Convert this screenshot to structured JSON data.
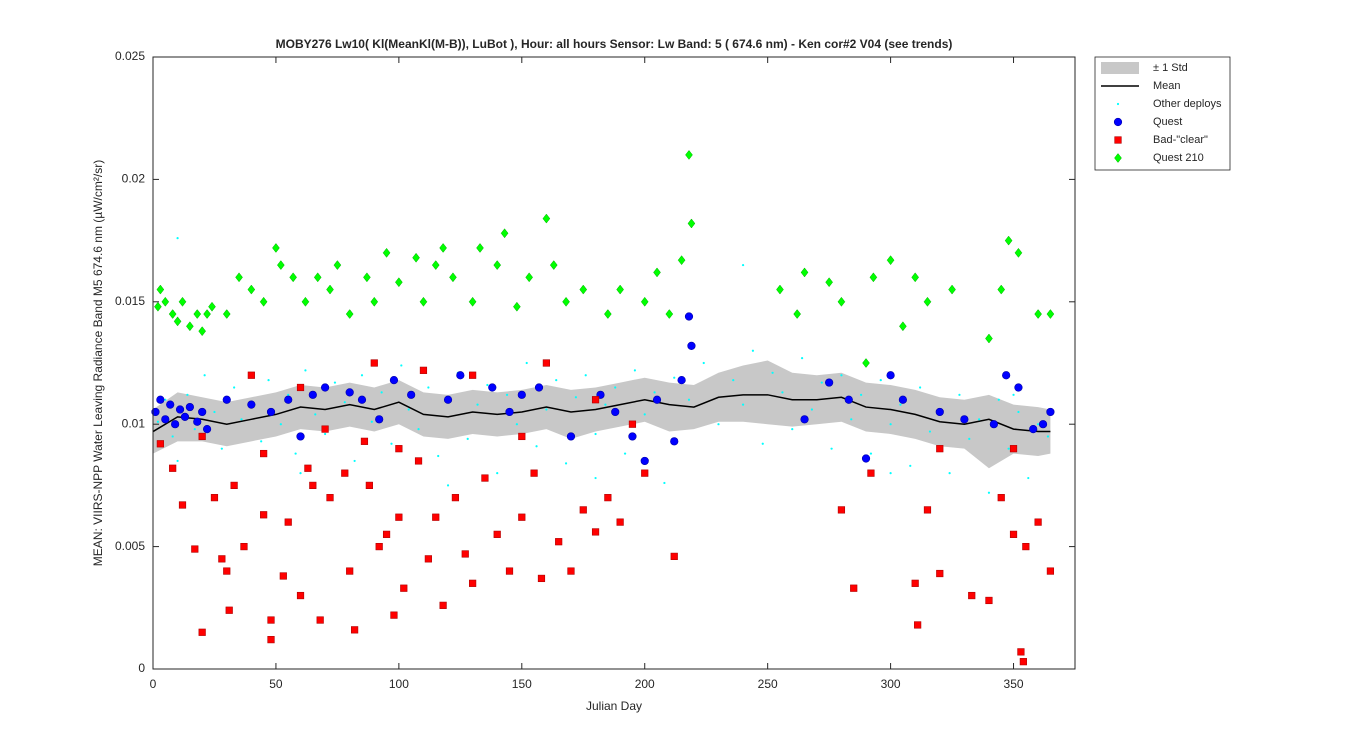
{
  "chart_data": {
    "type": "scatter",
    "title": "MOBY276   Lw10( Kl(MeanKl(M-B)), LuBot ),   Hour: all hours  Sensor: Lw Band: 5 ( 674.6 nm)  - Ken cor#2 V04 (see trends)",
    "xlabel": "Julian Day",
    "ylabel": "MEAN: VIIRS-NPP Water Leaving Radiance Band M5 674.6 nm (µW/cm²/sr)",
    "xlim": [
      0,
      375
    ],
    "ylim": [
      0,
      0.025
    ],
    "xticks": [
      0,
      50,
      100,
      150,
      200,
      250,
      300,
      350
    ],
    "yticks": [
      0,
      0.005,
      0.01,
      0.015,
      0.02,
      0.025
    ],
    "grid": false,
    "legend": "outside-top-right",
    "series": [
      {
        "name": "± 1 Std",
        "kind": "band",
        "color": "#c8c8c8",
        "x": [
          0,
          10,
          20,
          30,
          40,
          50,
          60,
          70,
          80,
          90,
          100,
          110,
          120,
          130,
          140,
          150,
          160,
          170,
          180,
          190,
          200,
          210,
          220,
          230,
          240,
          250,
          260,
          270,
          280,
          290,
          300,
          310,
          320,
          330,
          340,
          350,
          360,
          365
        ],
        "upper": [
          0.0106,
          0.0113,
          0.0111,
          0.0109,
          0.0111,
          0.0113,
          0.0116,
          0.0115,
          0.0117,
          0.0115,
          0.0118,
          0.0113,
          0.0112,
          0.0114,
          0.0113,
          0.0114,
          0.0116,
          0.0114,
          0.0115,
          0.0117,
          0.0119,
          0.0117,
          0.0116,
          0.0121,
          0.0124,
          0.0126,
          0.0121,
          0.012,
          0.0121,
          0.0117,
          0.0116,
          0.0114,
          0.0111,
          0.011,
          0.0112,
          0.0108,
          0.0107,
          0.0106
        ],
        "lower": [
          0.0088,
          0.0093,
          0.0093,
          0.0091,
          0.0093,
          0.0095,
          0.0098,
          0.0097,
          0.0099,
          0.0097,
          0.01,
          0.0095,
          0.0094,
          0.0096,
          0.0095,
          0.0096,
          0.0098,
          0.0094,
          0.0097,
          0.0099,
          0.0101,
          0.0097,
          0.0098,
          0.0101,
          0.0101,
          0.01,
          0.0099,
          0.01,
          0.0101,
          0.0097,
          0.0096,
          0.0094,
          0.0091,
          0.009,
          0.0082,
          0.0088,
          0.0087,
          0.0088
        ]
      },
      {
        "name": "Mean",
        "kind": "line",
        "color": "#000000",
        "x": [
          0,
          10,
          20,
          30,
          40,
          50,
          60,
          70,
          80,
          90,
          100,
          110,
          120,
          130,
          140,
          150,
          160,
          170,
          180,
          190,
          200,
          210,
          220,
          230,
          240,
          250,
          260,
          270,
          280,
          290,
          300,
          310,
          320,
          330,
          340,
          350,
          360,
          365
        ],
        "values": [
          0.0097,
          0.0103,
          0.0102,
          0.01,
          0.0102,
          0.0104,
          0.0107,
          0.0106,
          0.0108,
          0.0106,
          0.0109,
          0.0104,
          0.0103,
          0.0105,
          0.0104,
          0.0105,
          0.0107,
          0.0105,
          0.0106,
          0.0108,
          0.011,
          0.0108,
          0.0107,
          0.0111,
          0.0112,
          0.0112,
          0.011,
          0.011,
          0.0111,
          0.0107,
          0.0106,
          0.0104,
          0.0101,
          0.01,
          0.0102,
          0.0098,
          0.0097,
          0.0097
        ]
      },
      {
        "name": "Other deploys",
        "kind": "dot",
        "color": "#00ffff",
        "x": [
          2,
          5,
          8,
          10,
          14,
          17,
          21,
          25,
          28,
          33,
          36,
          40,
          44,
          47,
          52,
          55,
          58,
          62,
          66,
          70,
          74,
          78,
          82,
          85,
          89,
          93,
          97,
          101,
          104,
          108,
          112,
          116,
          120,
          124,
          128,
          132,
          136,
          140,
          144,
          148,
          152,
          156,
          160,
          164,
          168,
          172,
          176,
          180,
          184,
          188,
          192,
          196,
          200,
          204,
          208,
          212,
          218,
          224,
          230,
          236,
          240,
          244,
          248,
          252,
          256,
          260,
          264,
          268,
          272,
          276,
          280,
          284,
          288,
          292,
          296,
          300,
          304,
          308,
          312,
          316,
          320,
          324,
          328,
          332,
          336,
          340,
          344,
          348,
          352,
          356,
          360,
          364,
          10,
          60,
          120,
          180,
          240,
          300,
          350
        ],
        "values": [
          0.0101,
          0.011,
          0.0095,
          0.0176,
          0.0112,
          0.0098,
          0.012,
          0.0105,
          0.009,
          0.0115,
          0.0102,
          0.0108,
          0.0093,
          0.0118,
          0.01,
          0.0112,
          0.0088,
          0.0122,
          0.0104,
          0.0096,
          0.0117,
          0.0109,
          0.0085,
          0.012,
          0.0101,
          0.0113,
          0.0092,
          0.0124,
          0.0106,
          0.0098,
          0.0115,
          0.0087,
          0.011,
          0.0121,
          0.0094,
          0.0108,
          0.0116,
          0.008,
          0.0112,
          0.01,
          0.0125,
          0.0091,
          0.0106,
          0.0118,
          0.0084,
          0.0111,
          0.012,
          0.0096,
          0.0108,
          0.0115,
          0.0088,
          0.0122,
          0.0104,
          0.0113,
          0.0076,
          0.0119,
          0.011,
          0.0125,
          0.01,
          0.0118,
          0.0108,
          0.013,
          0.0092,
          0.0121,
          0.0113,
          0.0098,
          0.0127,
          0.0106,
          0.0117,
          0.009,
          0.012,
          0.0102,
          0.0112,
          0.0088,
          0.0118,
          0.01,
          0.0108,
          0.0083,
          0.0115,
          0.0097,
          0.0105,
          0.008,
          0.0112,
          0.0094,
          0.0102,
          0.0072,
          0.011,
          0.009,
          0.0105,
          0.0078,
          0.01,
          0.0095,
          0.0085,
          0.008,
          0.0075,
          0.0078,
          0.0165,
          0.008,
          0.0112
        ]
      },
      {
        "name": "Quest",
        "kind": "circle",
        "color": "#0000ff",
        "x": [
          1,
          3,
          5,
          7,
          9,
          11,
          13,
          15,
          18,
          20,
          22,
          30,
          40,
          48,
          55,
          60,
          65,
          70,
          80,
          85,
          92,
          98,
          105,
          120,
          125,
          138,
          145,
          150,
          157,
          170,
          182,
          188,
          195,
          200,
          205,
          212,
          215,
          218,
          219,
          265,
          275,
          283,
          290,
          300,
          305,
          320,
          330,
          342,
          347,
          352,
          358,
          362,
          365
        ],
        "values": [
          0.0105,
          0.011,
          0.0102,
          0.0108,
          0.01,
          0.0106,
          0.0103,
          0.0107,
          0.0101,
          0.0105,
          0.0098,
          0.011,
          0.0108,
          0.0105,
          0.011,
          0.0095,
          0.0112,
          0.0115,
          0.0113,
          0.011,
          0.0102,
          0.0118,
          0.0112,
          0.011,
          0.012,
          0.0115,
          0.0105,
          0.0112,
          0.0115,
          0.0095,
          0.0112,
          0.0105,
          0.0095,
          0.0085,
          0.011,
          0.0093,
          0.0118,
          0.0144,
          0.0132,
          0.0102,
          0.0117,
          0.011,
          0.0086,
          0.012,
          0.011,
          0.0105,
          0.0102,
          0.01,
          0.012,
          0.0115,
          0.0098,
          0.01,
          0.0105
        ]
      },
      {
        "name": "Bad-\"clear\"",
        "kind": "square",
        "color": "#ff0000",
        "x": [
          3,
          8,
          12,
          17,
          20,
          25,
          28,
          30,
          31,
          33,
          37,
          45,
          48,
          48,
          53,
          55,
          60,
          63,
          65,
          68,
          72,
          78,
          80,
          82,
          88,
          92,
          95,
          98,
          100,
          102,
          108,
          112,
          115,
          118,
          123,
          127,
          130,
          135,
          140,
          145,
          150,
          155,
          158,
          165,
          170,
          175,
          180,
          185,
          190,
          200,
          212,
          40,
          60,
          90,
          110,
          130,
          160,
          180,
          280,
          285,
          292,
          310,
          311,
          315,
          320,
          333,
          340,
          345,
          350,
          353,
          354,
          355,
          360,
          365,
          20,
          45,
          70,
          100,
          150,
          195,
          320,
          350,
          86
        ],
        "values": [
          0.0092,
          0.0082,
          0.0067,
          0.0049,
          0.0015,
          0.007,
          0.0045,
          0.004,
          0.0024,
          0.0075,
          0.005,
          0.0063,
          0.002,
          0.0012,
          0.0038,
          0.006,
          0.003,
          0.0082,
          0.0075,
          0.002,
          0.007,
          0.008,
          0.004,
          0.0016,
          0.0075,
          0.005,
          0.0055,
          0.0022,
          0.0062,
          0.0033,
          0.0085,
          0.0045,
          0.0062,
          0.0026,
          0.007,
          0.0047,
          0.0035,
          0.0078,
          0.0055,
          0.004,
          0.0062,
          0.008,
          0.0037,
          0.0052,
          0.004,
          0.0065,
          0.0056,
          0.007,
          0.006,
          0.008,
          0.0046,
          0.012,
          0.0115,
          0.0125,
          0.0122,
          0.012,
          0.0125,
          0.011,
          0.0065,
          0.0033,
          0.008,
          0.0035,
          0.0018,
          0.0065,
          0.0039,
          0.003,
          0.0028,
          0.007,
          0.0055,
          0.0007,
          0.0003,
          0.005,
          0.006,
          0.004,
          0.0095,
          0.0088,
          0.0098,
          0.009,
          0.0095,
          0.01,
          0.009,
          0.009,
          0.0093
        ]
      },
      {
        "name": "Quest 210",
        "kind": "diamond",
        "color": "#00ff00",
        "x": [
          2,
          3,
          5,
          8,
          10,
          12,
          15,
          18,
          20,
          22,
          24,
          30,
          35,
          40,
          45,
          50,
          52,
          57,
          62,
          67,
          72,
          75,
          80,
          87,
          90,
          95,
          100,
          107,
          110,
          115,
          118,
          122,
          130,
          133,
          140,
          143,
          148,
          153,
          160,
          163,
          168,
          175,
          185,
          190,
          200,
          205,
          210,
          215,
          218,
          219,
          255,
          262,
          265,
          275,
          280,
          293,
          300,
          305,
          310,
          315,
          325,
          340,
          345,
          348,
          352,
          360,
          365,
          290
        ],
        "values": [
          0.0148,
          0.0155,
          0.015,
          0.0145,
          0.0142,
          0.015,
          0.014,
          0.0145,
          0.0138,
          0.0145,
          0.0148,
          0.0145,
          0.016,
          0.0155,
          0.015,
          0.0172,
          0.0165,
          0.016,
          0.015,
          0.016,
          0.0155,
          0.0165,
          0.0145,
          0.016,
          0.015,
          0.017,
          0.0158,
          0.0168,
          0.015,
          0.0165,
          0.0172,
          0.016,
          0.015,
          0.0172,
          0.0165,
          0.0178,
          0.0148,
          0.016,
          0.0184,
          0.0165,
          0.015,
          0.0155,
          0.0145,
          0.0155,
          0.015,
          0.0162,
          0.0145,
          0.0167,
          0.021,
          0.0182,
          0.0155,
          0.0145,
          0.0162,
          0.0158,
          0.015,
          0.016,
          0.0167,
          0.014,
          0.016,
          0.015,
          0.0155,
          0.0135,
          0.0155,
          0.0175,
          0.017,
          0.0145,
          0.0145,
          0.0125
        ]
      }
    ]
  }
}
